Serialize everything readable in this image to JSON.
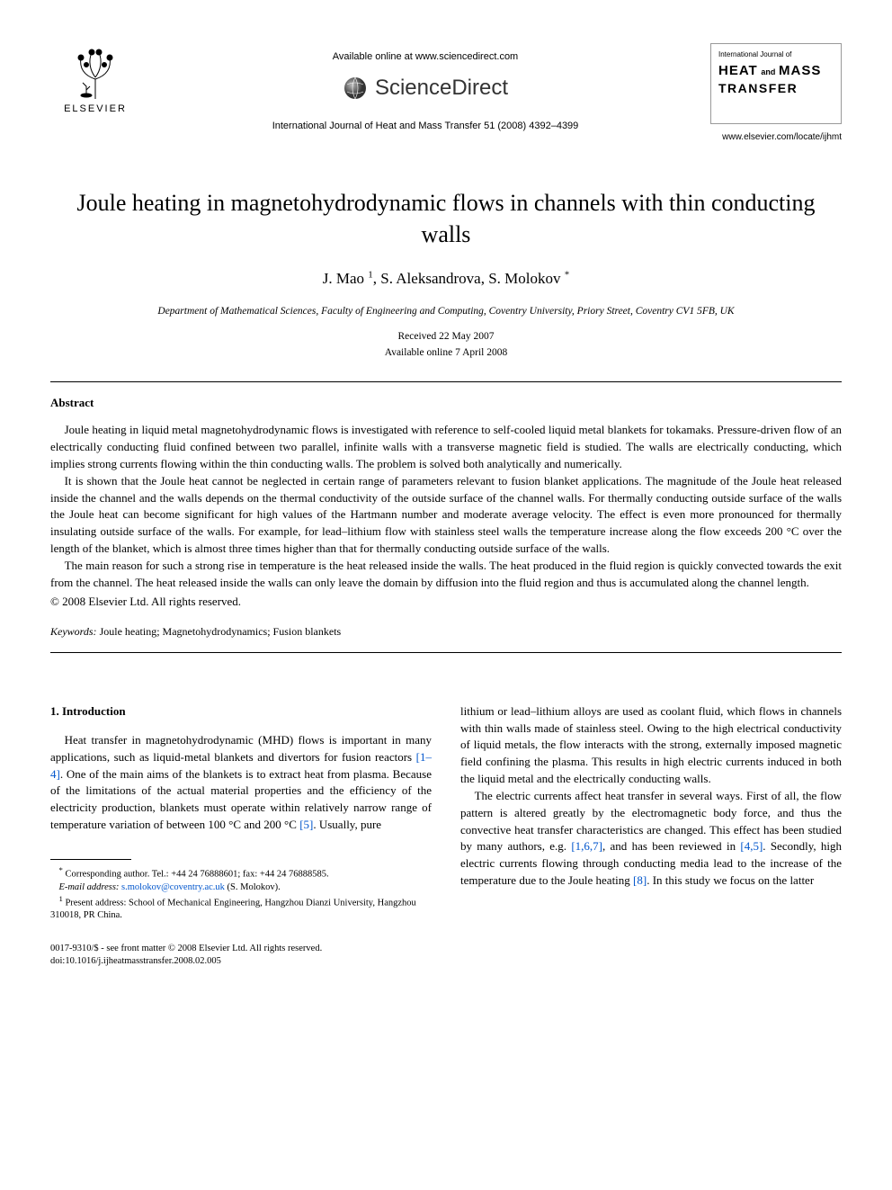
{
  "header": {
    "available_online": "Available online at www.sciencedirect.com",
    "sciencedirect": "ScienceDirect",
    "citation": "International Journal of Heat and Mass Transfer 51 (2008) 4392–4399",
    "elsevier_label": "ELSEVIER",
    "journal_cover": {
      "line1": "International Journal of",
      "heat": "HEAT",
      "and": "and",
      "mass": "MASS",
      "transfer": "TRANSFER"
    },
    "locate": "www.elsevier.com/locate/ijhmt"
  },
  "title": "Joule heating in magnetohydrodynamic flows in channels with thin conducting walls",
  "authors_html": "J. Mao <sup>1</sup>, S. Aleksandrova, S. Molokov <sup>*</sup>",
  "affiliation": "Department of Mathematical Sciences, Faculty of Engineering and Computing, Coventry University, Priory Street, Coventry CV1 5FB, UK",
  "dates": {
    "received": "Received 22 May 2007",
    "online": "Available online 7 April 2008"
  },
  "abstract": {
    "heading": "Abstract",
    "p1": "Joule heating in liquid metal magnetohydrodynamic flows is investigated with reference to self-cooled liquid metal blankets for tokamaks. Pressure-driven flow of an electrically conducting fluid confined between two parallel, infinite walls with a transverse magnetic field is studied. The walls are electrically conducting, which implies strong currents flowing within the thin conducting walls. The problem is solved both analytically and numerically.",
    "p2": "It is shown that the Joule heat cannot be neglected in certain range of parameters relevant to fusion blanket applications. The magnitude of the Joule heat released inside the channel and the walls depends on the thermal conductivity of the outside surface of the channel walls. For thermally conducting outside surface of the walls the Joule heat can become significant for high values of the Hartmann number and moderate average velocity. The effect is even more pronounced for thermally insulating outside surface of the walls. For example, for lead–lithium flow with stainless steel walls the temperature increase along the flow exceeds 200 °C over the length of the blanket, which is almost three times higher than that for thermally conducting outside surface of the walls.",
    "p3": "The main reason for such a strong rise in temperature is the heat released inside the walls. The heat produced in the fluid region is quickly convected towards the exit from the channel. The heat released inside the walls can only leave the domain by diffusion into the fluid region and thus is accumulated along the channel length.",
    "copyright": "© 2008 Elsevier Ltd. All rights reserved."
  },
  "keywords": {
    "label": "Keywords:",
    "text": " Joule heating; Magnetohydrodynamics; Fusion blankets"
  },
  "section1": {
    "heading": "1. Introduction",
    "col1_p1_pre": "Heat transfer in magnetohydrodynamic (MHD) flows is important in many applications, such as liquid-metal blankets and divertors for fusion reactors ",
    "ref_1_4": "[1–4]",
    "col1_p1_mid": ". One of the main aims of the blankets is to extract heat from plasma. Because of the limitations of the actual material properties and the efficiency of the electricity production, blankets must operate within relatively narrow range of temperature variation of between 100 °C and 200 °C ",
    "ref_5": "[5]",
    "col1_p1_post": ". Usually, pure",
    "col2_p1": "lithium or lead–lithium alloys are used as coolant fluid, which flows in channels with thin walls made of stainless steel. Owing to the high electrical conductivity of liquid metals, the flow interacts with the strong, externally imposed magnetic field confining the plasma. This results in high electric currents induced in both the liquid metal and the electrically conducting walls.",
    "col2_p2_pre": "The electric currents affect heat transfer in several ways. First of all, the flow pattern is altered greatly by the electromagnetic body force, and thus the convective heat transfer characteristics are changed. This effect has been studied by many authors, e.g. ",
    "ref_167": "[1,6,7]",
    "col2_p2_mid1": ", and has been reviewed in ",
    "ref_45": "[4,5]",
    "col2_p2_mid2": ". Secondly, high electric currents flowing through conducting media lead to the increase of the temperature due to the Joule heating ",
    "ref_8": "[8]",
    "col2_p2_post": ". In this study we focus on the latter"
  },
  "footnotes": {
    "corr_label": "*",
    "corr_text": " Corresponding author. Tel.: +44 24 76888601; fax: +44 24 76888585.",
    "email_label": "E-mail address:",
    "email": "s.molokov@coventry.ac.uk",
    "email_who": " (S. Molokov).",
    "fn1_label": "1",
    "fn1_text": " Present address: School of Mechanical Engineering, Hangzhou Dianzi University, Hangzhou 310018, PR China."
  },
  "bottom": {
    "line1": "0017-9310/$ - see front matter © 2008 Elsevier Ltd. All rights reserved.",
    "line2": "doi:10.1016/j.ijheatmasstransfer.2008.02.005"
  },
  "colors": {
    "link": "#0055cc",
    "text": "#000000",
    "background": "#ffffff"
  }
}
